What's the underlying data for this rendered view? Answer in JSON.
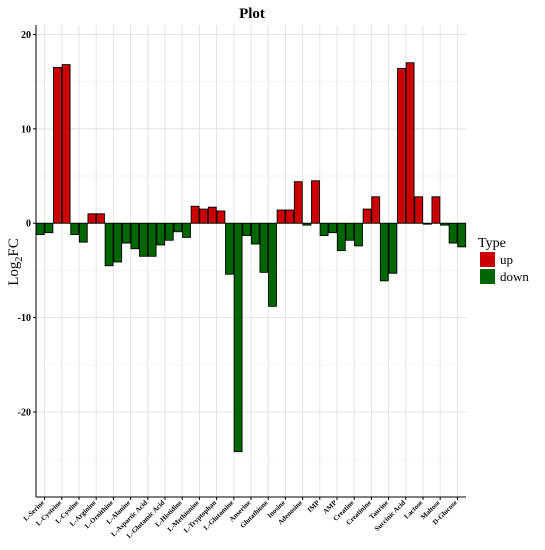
{
  "chart_data": {
    "type": "bar",
    "title": "Plot",
    "ylabel_main": "Log",
    "ylabel_sub": "2",
    "ylabel_tail": "FC",
    "xlabel": "",
    "ylim": [
      -29,
      21
    ],
    "yticks": [
      -20,
      -10,
      0,
      10,
      20
    ],
    "grid": true,
    "legend": {
      "title": "Type",
      "placement": "right",
      "entries": [
        {
          "label": "up",
          "color": "#cc0000"
        },
        {
          "label": "down",
          "color": "#006600"
        }
      ]
    },
    "tick_labels": [
      "L-Serine",
      "L-Cysteine",
      "L-Cystine",
      "L-Arginine",
      "L-Ornithine",
      "L-Alanine",
      "L-Aspartic Acid",
      "L-Glutamic Acid",
      "L-Histidine",
      "L-Methionine",
      "L-Tryptophan",
      "L-Glutamine",
      "Anserine",
      "Glutathione",
      "Inosine",
      "Adenosine",
      "IMP",
      "AMP",
      "Creatine",
      "Creatinine",
      "Taurine",
      "Succinic Acid",
      "Lactose",
      "Maltose",
      "D-Glucose"
    ],
    "bars": [
      {
        "value": -1.2,
        "type": "down"
      },
      {
        "value": -1.0,
        "type": "down"
      },
      {
        "value": 16.5,
        "type": "up"
      },
      {
        "value": 16.8,
        "type": "up"
      },
      {
        "value": -1.2,
        "type": "down"
      },
      {
        "value": -2.0,
        "type": "down"
      },
      {
        "value": 1.0,
        "type": "up"
      },
      {
        "value": 1.0,
        "type": "up"
      },
      {
        "value": -4.5,
        "type": "down"
      },
      {
        "value": -4.1,
        "type": "down"
      },
      {
        "value": -2.1,
        "type": "down"
      },
      {
        "value": -2.7,
        "type": "down"
      },
      {
        "value": -3.5,
        "type": "down"
      },
      {
        "value": -3.5,
        "type": "down"
      },
      {
        "value": -2.3,
        "type": "down"
      },
      {
        "value": -1.8,
        "type": "down"
      },
      {
        "value": -0.9,
        "type": "down"
      },
      {
        "value": -1.5,
        "type": "down"
      },
      {
        "value": 1.8,
        "type": "up"
      },
      {
        "value": 1.5,
        "type": "up"
      },
      {
        "value": 1.7,
        "type": "up"
      },
      {
        "value": 1.3,
        "type": "up"
      },
      {
        "value": -5.4,
        "type": "down"
      },
      {
        "value": -24.2,
        "type": "down"
      },
      {
        "value": -1.3,
        "type": "down"
      },
      {
        "value": -2.2,
        "type": "down"
      },
      {
        "value": -5.2,
        "type": "down"
      },
      {
        "value": -8.8,
        "type": "down"
      },
      {
        "value": 1.4,
        "type": "up"
      },
      {
        "value": 1.4,
        "type": "up"
      },
      {
        "value": 4.4,
        "type": "up"
      },
      {
        "value": -0.2,
        "type": "down"
      },
      {
        "value": 4.5,
        "type": "up"
      },
      {
        "value": -1.3,
        "type": "down"
      },
      {
        "value": -1.0,
        "type": "down"
      },
      {
        "value": -2.9,
        "type": "down"
      },
      {
        "value": -1.8,
        "type": "down"
      },
      {
        "value": -2.4,
        "type": "down"
      },
      {
        "value": 1.5,
        "type": "up"
      },
      {
        "value": 2.8,
        "type": "up"
      },
      {
        "value": -6.1,
        "type": "down"
      },
      {
        "value": -5.3,
        "type": "down"
      },
      {
        "value": 16.4,
        "type": "up"
      },
      {
        "value": 17.0,
        "type": "up"
      },
      {
        "value": 2.8,
        "type": "up"
      },
      {
        "value": -0.1,
        "type": "down"
      },
      {
        "value": 2.8,
        "type": "up"
      },
      {
        "value": -0.2,
        "type": "down"
      },
      {
        "value": -2.1,
        "type": "down"
      },
      {
        "value": -2.5,
        "type": "down"
      }
    ]
  }
}
